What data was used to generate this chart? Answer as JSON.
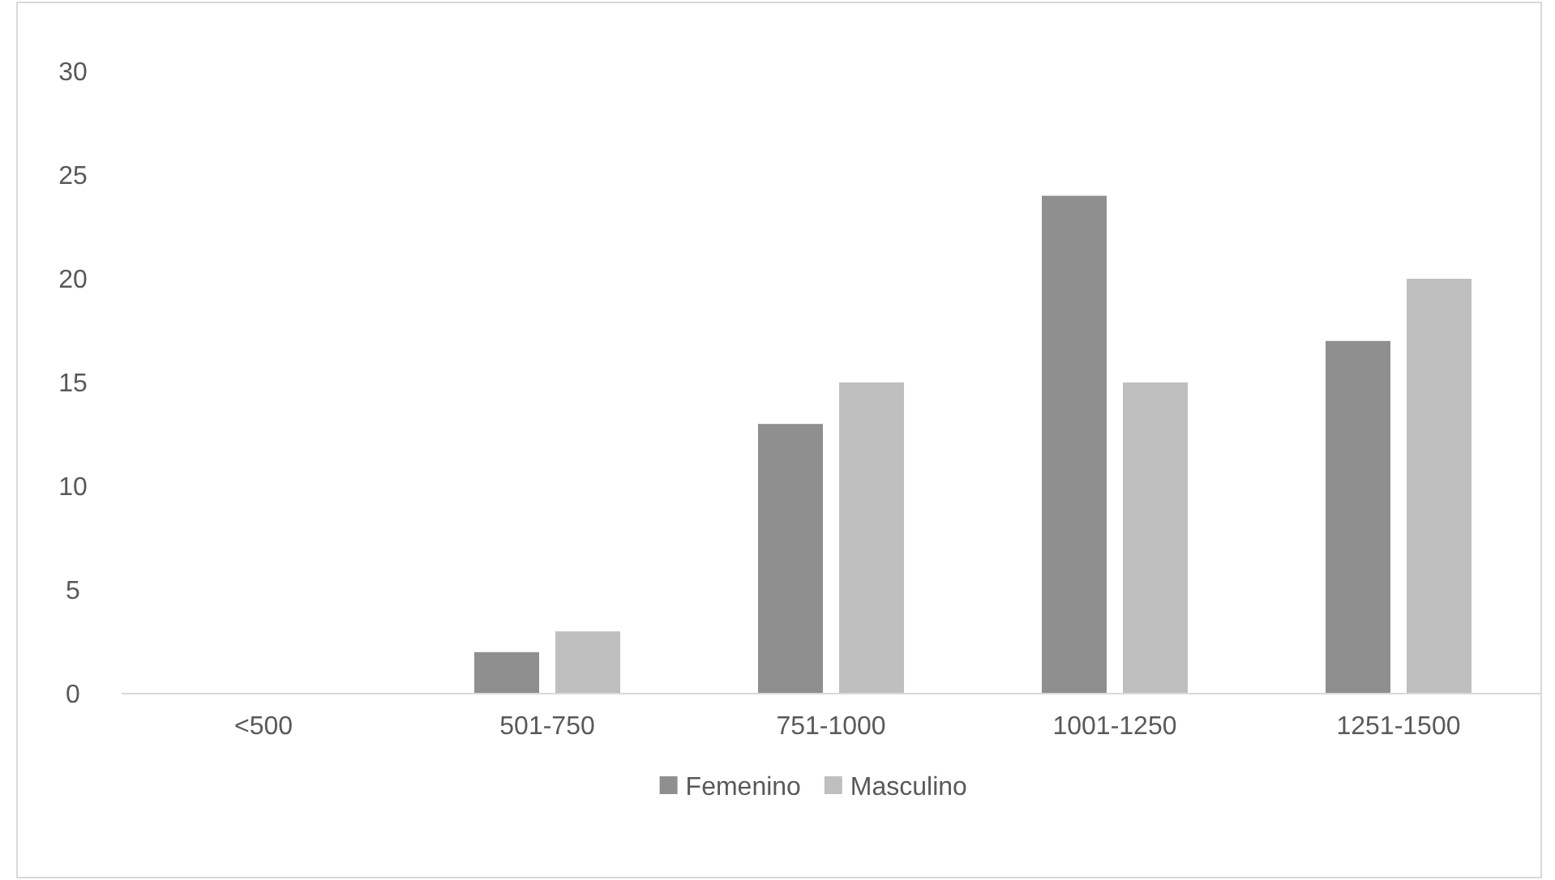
{
  "chart_data": {
    "type": "bar",
    "categories": [
      "<500",
      "501-750",
      "751-1000",
      "1001-1250",
      "1251-1500"
    ],
    "series": [
      {
        "name": "Femenino",
        "color": "#8f8f8f",
        "values": [
          0,
          2,
          13,
          24,
          17
        ]
      },
      {
        "name": "Masculino",
        "color": "#bfbfbf",
        "values": [
          0,
          3,
          15,
          15,
          20
        ]
      }
    ],
    "ylim": [
      0,
      30
    ],
    "yticks": [
      0,
      5,
      10,
      15,
      20,
      25,
      30
    ],
    "grid": false,
    "legend": "bottom"
  }
}
